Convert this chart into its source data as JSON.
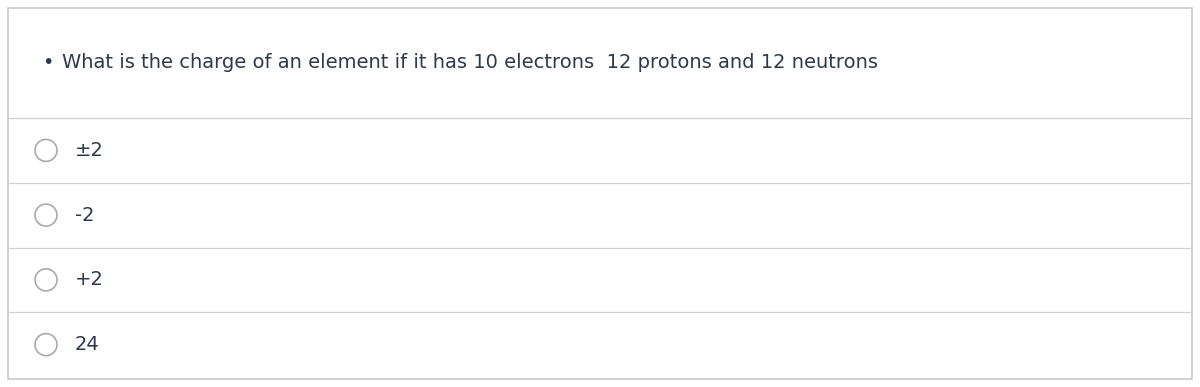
{
  "question": "What is the charge of an element if it has 10 electrons  12 protons and 12 neutrons",
  "options": [
    "±2",
    "-2",
    "+2",
    "24"
  ],
  "bg_color": "#ffffff",
  "border_color": "#c8c8c8",
  "text_color": "#2d3a4a",
  "line_color": "#d0d0d0",
  "circle_edge_color": "#aaaaaa",
  "question_fontsize": 14,
  "option_fontsize": 14,
  "fig_width": 12.0,
  "fig_height": 3.87,
  "dpi": 100
}
